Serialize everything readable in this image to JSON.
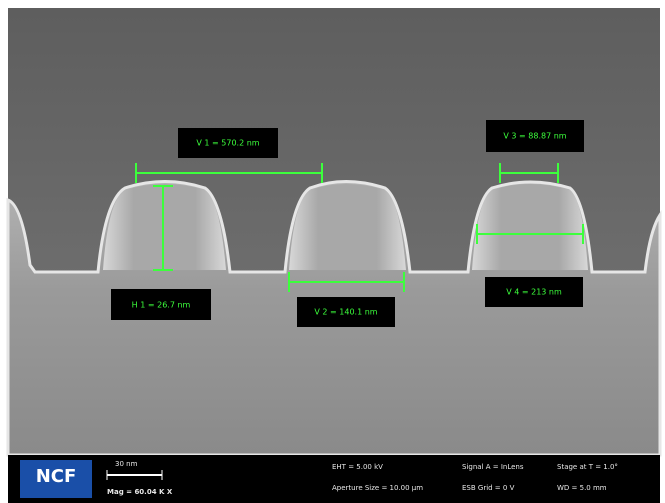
{
  "measurements": [
    {
      "label": "V 1 = 570.2 nm"
    },
    {
      "label": "V 3 = 88.87 nm"
    },
    {
      "label": "H 1 = 26.7 nm"
    },
    {
      "label": "V 2 = 140.1 nm"
    },
    {
      "label": "V 4 = 213 nm"
    }
  ],
  "info_bar": {
    "logo": "NCF",
    "scale": "30 nm",
    "magnification": "Mag = 60.04 K X",
    "eht": "EHT = 5.00 kV",
    "aperture": "Aperture Size = 10.00 µm",
    "signal": "Signal A = InLens",
    "grid": "ESB Grid = 0 V",
    "stage": "Stage at T = 1.0°",
    "wd": "WD = 5.0 mm"
  }
}
